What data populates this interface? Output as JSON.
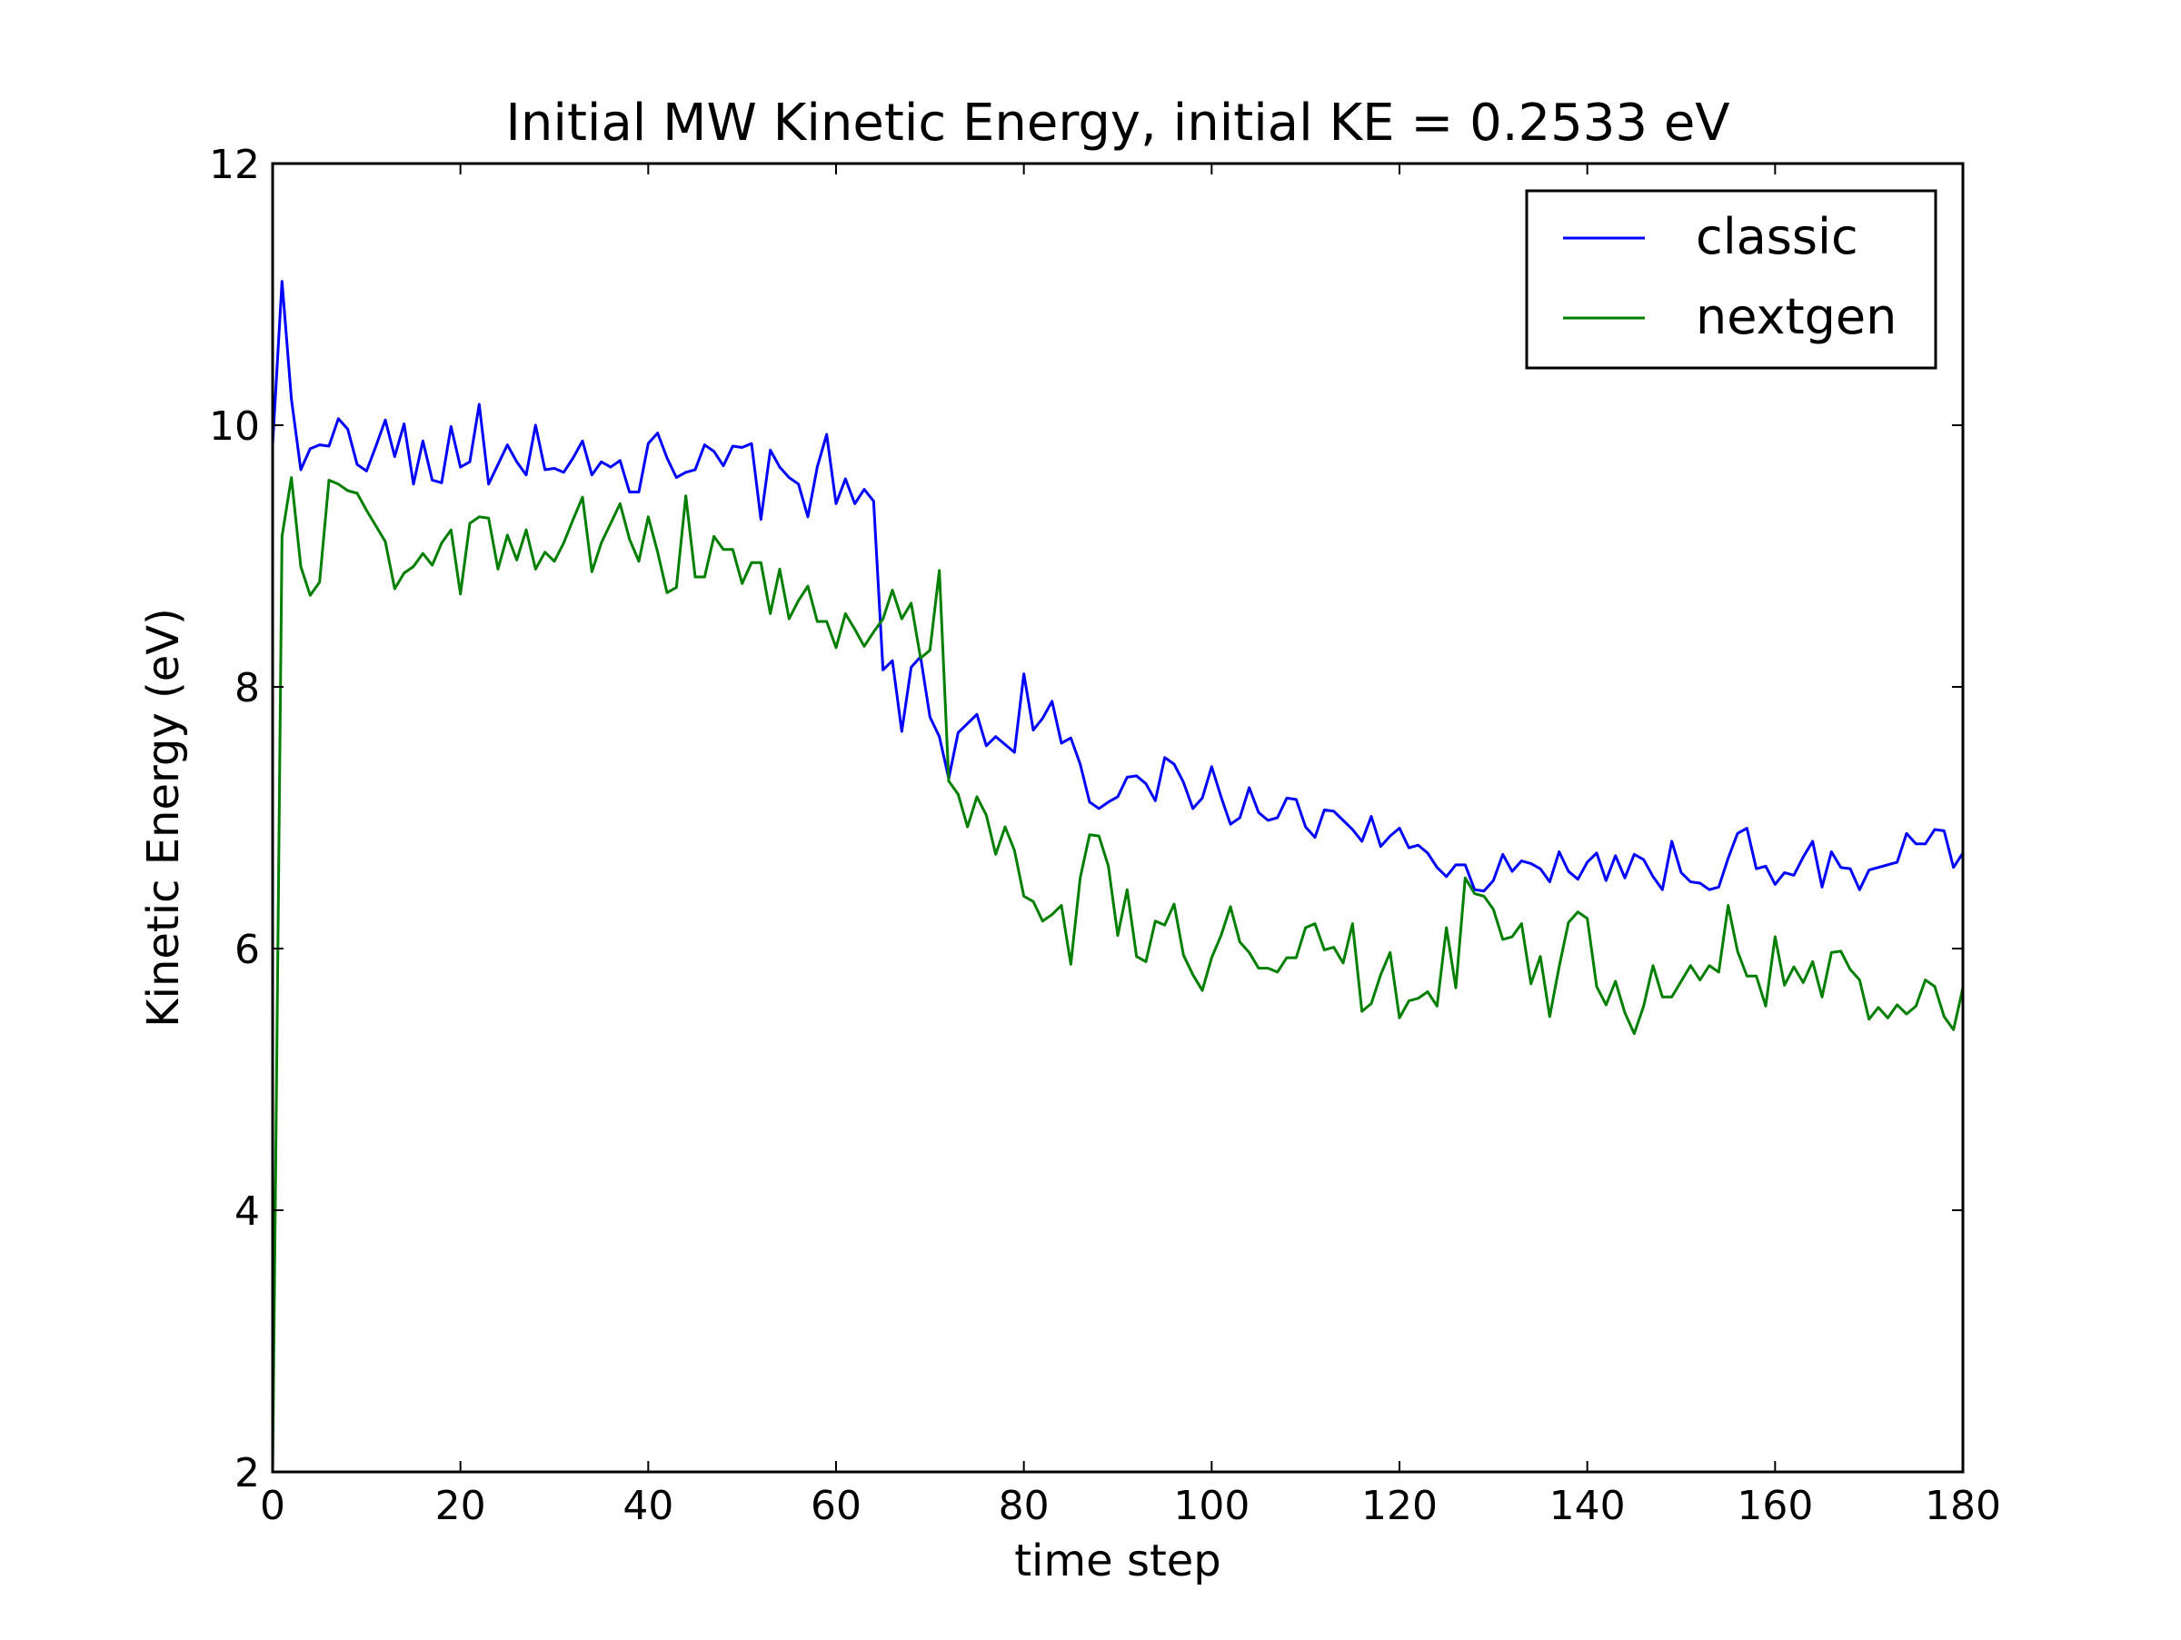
{
  "chart_data": {
    "type": "line",
    "title": "Initial MW Kinetic Energy, initial KE = 0.2533 eV",
    "xlabel": "time step",
    "ylabel": "Kinetic Energy (eV)",
    "xlim": [
      0,
      180
    ],
    "ylim": [
      2,
      12
    ],
    "xticks": [
      0,
      20,
      40,
      60,
      80,
      100,
      120,
      140,
      160,
      180
    ],
    "yticks": [
      2,
      4,
      6,
      8,
      10,
      12
    ],
    "grid": false,
    "legend_position": "top-right",
    "series": [
      {
        "name": "classic",
        "color": "#0000ff",
        "x_start": 0,
        "x_step": 1,
        "values": [
          9.85,
          11.1,
          10.2,
          9.66,
          9.82,
          9.85,
          9.84,
          10.05,
          9.97,
          9.7,
          9.65,
          9.84,
          10.04,
          9.76,
          10.01,
          9.55,
          9.88,
          9.58,
          9.56,
          9.99,
          9.68,
          9.72,
          10.16,
          9.55,
          9.7,
          9.85,
          9.72,
          9.62,
          10.0,
          9.66,
          9.67,
          9.64,
          9.75,
          9.88,
          9.62,
          9.72,
          9.68,
          9.73,
          9.49,
          9.49,
          9.86,
          9.94,
          9.75,
          9.6,
          9.64,
          9.66,
          9.85,
          9.8,
          9.69,
          9.84,
          9.83,
          9.86,
          9.28,
          9.81,
          9.68,
          9.6,
          9.55,
          9.3,
          9.68,
          9.93,
          9.4,
          9.59,
          9.4,
          9.51,
          9.42,
          8.13,
          8.2,
          7.66,
          8.15,
          8.23,
          7.77,
          7.62,
          7.3,
          7.65,
          7.72,
          7.79,
          7.55,
          7.62,
          7.56,
          7.5,
          8.1,
          7.67,
          7.76,
          7.89,
          7.57,
          7.61,
          7.41,
          7.12,
          7.07,
          7.12,
          7.16,
          7.31,
          7.32,
          7.26,
          7.13,
          7.46,
          7.41,
          7.27,
          7.07,
          7.15,
          7.39,
          7.16,
          6.95,
          7.0,
          7.23,
          7.04,
          6.98,
          7.0,
          7.15,
          7.14,
          6.93,
          6.85,
          7.06,
          7.05,
          6.98,
          6.91,
          6.82,
          7.01,
          6.78,
          6.86,
          6.92,
          6.77,
          6.79,
          6.73,
          6.62,
          6.55,
          6.64,
          6.64,
          6.45,
          6.44,
          6.52,
          6.72,
          6.59,
          6.67,
          6.65,
          6.61,
          6.51,
          6.74,
          6.59,
          6.53,
          6.66,
          6.73,
          6.52,
          6.71,
          6.54,
          6.72,
          6.68,
          6.55,
          6.45,
          6.82,
          6.58,
          6.51,
          6.5,
          6.45,
          6.47,
          6.69,
          6.88,
          6.92,
          6.61,
          6.63,
          6.49,
          6.58,
          6.56,
          6.7,
          6.82,
          6.47,
          6.74,
          6.62,
          6.61,
          6.45,
          6.6,
          6.62,
          6.64,
          6.66,
          6.88,
          6.8,
          6.8,
          6.91,
          6.9,
          6.62,
          6.73
        ]
      },
      {
        "name": "nextgen",
        "color": "#007f00",
        "x_start": 0,
        "x_step": 1,
        "values": [
          2.0,
          9.15,
          9.6,
          8.92,
          8.7,
          8.8,
          9.58,
          9.55,
          9.5,
          9.48,
          9.35,
          9.23,
          9.11,
          8.75,
          8.87,
          8.92,
          9.02,
          8.93,
          9.1,
          9.2,
          8.71,
          9.25,
          9.3,
          9.29,
          8.9,
          9.16,
          8.97,
          9.2,
          8.9,
          9.03,
          8.96,
          9.1,
          9.28,
          9.45,
          8.88,
          9.1,
          9.25,
          9.4,
          9.13,
          8.96,
          9.3,
          9.03,
          8.72,
          8.76,
          9.46,
          8.84,
          8.84,
          9.15,
          9.05,
          9.05,
          8.79,
          8.95,
          8.95,
          8.56,
          8.9,
          8.52,
          8.66,
          8.77,
          8.5,
          8.5,
          8.3,
          8.56,
          8.44,
          8.31,
          8.42,
          8.52,
          8.74,
          8.52,
          8.64,
          8.22,
          8.28,
          8.89,
          7.28,
          7.18,
          6.93,
          7.16,
          7.02,
          6.72,
          6.93,
          6.75,
          6.4,
          6.36,
          6.21,
          6.26,
          6.33,
          5.88,
          6.54,
          6.87,
          6.86,
          6.63,
          6.1,
          6.45,
          5.94,
          5.9,
          6.21,
          6.18,
          6.34,
          5.95,
          5.8,
          5.68,
          5.93,
          6.1,
          6.32,
          6.05,
          5.97,
          5.85,
          5.85,
          5.82,
          5.93,
          5.93,
          6.16,
          6.19,
          5.99,
          6.01,
          5.89,
          6.19,
          5.52,
          5.58,
          5.8,
          5.97,
          5.47,
          5.6,
          5.62,
          5.67,
          5.56,
          6.16,
          5.7,
          6.54,
          6.42,
          6.4,
          6.3,
          6.07,
          6.09,
          6.19,
          5.73,
          5.94,
          5.48,
          5.86,
          6.2,
          6.28,
          6.23,
          5.71,
          5.57,
          5.75,
          5.51,
          5.35,
          5.56,
          5.87,
          5.63,
          5.63,
          5.75,
          5.87,
          5.76,
          5.87,
          5.82,
          6.33,
          5.98,
          5.79,
          5.79,
          5.56,
          6.09,
          5.72,
          5.86,
          5.74,
          5.9,
          5.63,
          5.97,
          5.98,
          5.84,
          5.76,
          5.46,
          5.55,
          5.47,
          5.57,
          5.5,
          5.56,
          5.76,
          5.71,
          5.48,
          5.38,
          5.7
        ]
      }
    ]
  }
}
